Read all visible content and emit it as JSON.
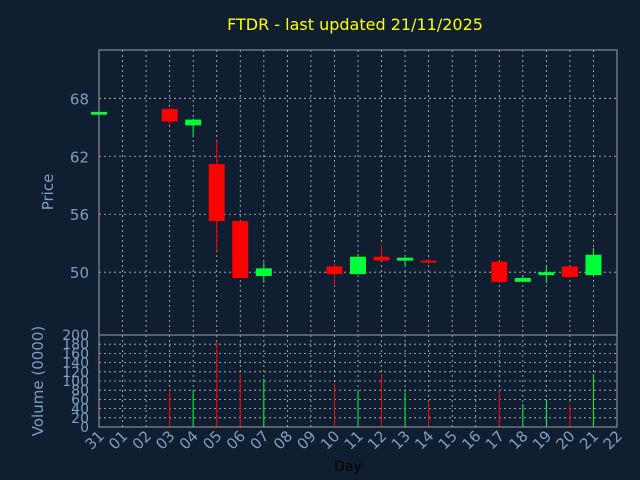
{
  "chart_data": [
    {
      "type": "candlestick",
      "title": "FTDR - last updated 21/11/2025",
      "ylabel": "Price",
      "ylim": [
        43.5,
        73.0
      ],
      "yticks": [
        50,
        56,
        62,
        68
      ],
      "x": [
        "31",
        "01",
        "02",
        "03",
        "04",
        "05",
        "06",
        "07",
        "08",
        "09",
        "10",
        "11",
        "12",
        "13",
        "14",
        "15",
        "16",
        "17",
        "18",
        "19",
        "20",
        "21",
        "22"
      ],
      "candles": [
        {
          "day": "31",
          "open": 66.3,
          "high": 66.6,
          "low": 66.3,
          "close": 66.6
        },
        {
          "day": "03",
          "open": 66.9,
          "high": 66.9,
          "low": 65.2,
          "close": 65.6
        },
        {
          "day": "04",
          "open": 65.2,
          "high": 65.9,
          "low": 64.0,
          "close": 65.8
        },
        {
          "day": "05",
          "open": 61.2,
          "high": 63.6,
          "low": 52.2,
          "close": 55.3
        },
        {
          "day": "06",
          "open": 55.3,
          "high": 55.3,
          "low": 49.4,
          "close": 49.4
        },
        {
          "day": "07",
          "open": 49.6,
          "high": 51.0,
          "low": 48.9,
          "close": 50.4
        },
        {
          "day": "10",
          "open": 50.6,
          "high": 50.9,
          "low": 48.6,
          "close": 49.8
        },
        {
          "day": "11",
          "open": 49.8,
          "high": 51.9,
          "low": 49.8,
          "close": 51.6
        },
        {
          "day": "12",
          "open": 51.6,
          "high": 52.8,
          "low": 51.2,
          "close": 51.2
        },
        {
          "day": "13",
          "open": 51.2,
          "high": 51.6,
          "low": 50.6,
          "close": 51.5
        },
        {
          "day": "14",
          "open": 51.2,
          "high": 51.4,
          "low": 50.9,
          "close": 51.0
        },
        {
          "day": "17",
          "open": 51.1,
          "high": 51.1,
          "low": 48.9,
          "close": 49.0
        },
        {
          "day": "18",
          "open": 49.0,
          "high": 49.6,
          "low": 49.0,
          "close": 49.4
        },
        {
          "day": "19",
          "open": 49.7,
          "high": 50.6,
          "low": 48.9,
          "close": 50.0
        },
        {
          "day": "20",
          "open": 50.6,
          "high": 50.6,
          "low": 49.4,
          "close": 49.5
        },
        {
          "day": "21",
          "open": 49.7,
          "high": 52.5,
          "low": 49.6,
          "close": 51.8
        }
      ],
      "colors": {
        "up": "#00ff3a",
        "down": "#ff0000"
      },
      "grid": true
    },
    {
      "type": "bar",
      "xlabel": "Day",
      "ylabel": "Volume (0000)",
      "ylim": [
        0,
        200
      ],
      "yticks": [
        0,
        20,
        40,
        60,
        80,
        100,
        120,
        140,
        160,
        180,
        200
      ],
      "x": [
        "31",
        "01",
        "02",
        "03",
        "04",
        "05",
        "06",
        "07",
        "08",
        "09",
        "10",
        "11",
        "12",
        "13",
        "14",
        "15",
        "16",
        "17",
        "18",
        "19",
        "20",
        "21",
        "22"
      ],
      "volumes": [
        {
          "day": "03",
          "value": 80,
          "direction": "down"
        },
        {
          "day": "04",
          "value": 80,
          "direction": "up"
        },
        {
          "day": "05",
          "value": 185,
          "direction": "down"
        },
        {
          "day": "06",
          "value": 115,
          "direction": "down"
        },
        {
          "day": "07",
          "value": 105,
          "direction": "up"
        },
        {
          "day": "10",
          "value": 95,
          "direction": "down"
        },
        {
          "day": "11",
          "value": 80,
          "direction": "up"
        },
        {
          "day": "12",
          "value": 115,
          "direction": "down"
        },
        {
          "day": "13",
          "value": 75,
          "direction": "up"
        },
        {
          "day": "14",
          "value": 55,
          "direction": "down"
        },
        {
          "day": "17",
          "value": 80,
          "direction": "down"
        },
        {
          "day": "18",
          "value": 50,
          "direction": "up"
        },
        {
          "day": "19",
          "value": 60,
          "direction": "up"
        },
        {
          "day": "20",
          "value": 50,
          "direction": "down"
        },
        {
          "day": "21",
          "value": 115,
          "direction": "up"
        }
      ],
      "grid": true
    }
  ],
  "theme": {
    "background": "#0f1e30",
    "axis_text": "#7f9fc0",
    "title_color": "#ffff00",
    "grid_color": "#c0c0c0",
    "frame_color": "#a0a0a0",
    "xlabel_color": "#000000"
  }
}
